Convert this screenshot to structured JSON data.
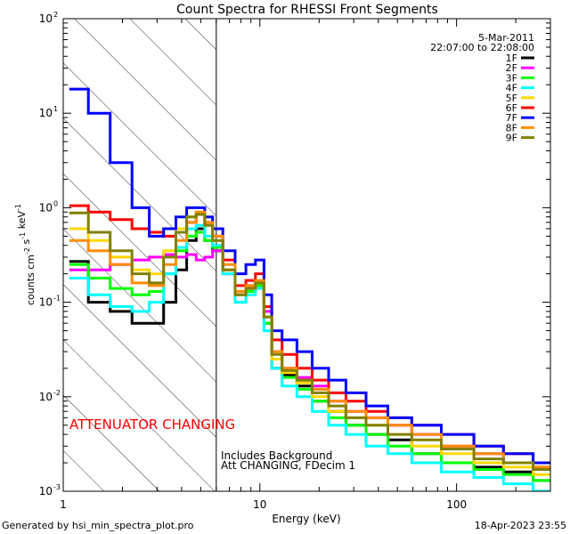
{
  "chart_data": {
    "type": "line",
    "title": "Count Spectra for RHESSI Front Segments",
    "xlabel": "Energy (keV)",
    "ylabel": "counts cm^-2 s^-1 keV^-1",
    "x_scale": "log",
    "y_scale": "log",
    "xlim": [
      1.0,
      300.0
    ],
    "ylim": [
      0.001,
      100.0
    ],
    "x_ticks": [
      {
        "value": 1,
        "label": "1"
      },
      {
        "value": 10,
        "label": "10"
      },
      {
        "value": 100,
        "label": "100"
      }
    ],
    "y_ticks": [
      {
        "value": 0.001,
        "base": "10",
        "exp": "-3"
      },
      {
        "value": 0.01,
        "base": "10",
        "exp": "-2"
      },
      {
        "value": 0.1,
        "base": "10",
        "exp": "-1"
      },
      {
        "value": 1,
        "base": "10",
        "exp": "0"
      },
      {
        "value": 10,
        "base": "10",
        "exp": "1"
      },
      {
        "value": 100,
        "base": "10",
        "exp": "2"
      }
    ],
    "legend": {
      "date": "5-Mar-2011",
      "time_range": "22:07:00 to 22:08:00",
      "placement": "top-right"
    },
    "shaded_region": {
      "x_start": 1.0,
      "x_end": 6.0,
      "pattern": "diagonal-hatch"
    },
    "annotations": {
      "attenuator": "ATTENUATOR CHANGING",
      "background": "Includes Background",
      "att_status": "Att CHANGING, FDecim 1"
    },
    "series": [
      {
        "name": "1F",
        "color": "#000000",
        "x": [
          1.2,
          1.5,
          2.0,
          2.5,
          3.0,
          3.5,
          4.0,
          4.5,
          5.0,
          5.5,
          6.0,
          7.0,
          8.0,
          9.0,
          10.0,
          11.0,
          12.0,
          14.0,
          17.0,
          20.0,
          25.0,
          30.0,
          40.0,
          50.0,
          70.0,
          100.0,
          150.0,
          200.0,
          300.0
        ],
        "values": [
          0.27,
          0.1,
          0.08,
          0.06,
          0.06,
          0.1,
          0.22,
          0.45,
          0.6,
          0.45,
          0.35,
          0.22,
          0.12,
          0.14,
          0.15,
          0.06,
          0.02,
          0.017,
          0.013,
          0.009,
          0.007,
          0.005,
          0.004,
          0.0035,
          0.0025,
          0.002,
          0.0018,
          0.0016,
          0.0013
        ]
      },
      {
        "name": "2F",
        "color": "#ff00ff",
        "x": [
          1.2,
          1.5,
          2.0,
          2.5,
          3.0,
          3.5,
          4.0,
          4.5,
          5.0,
          5.5,
          6.0,
          7.0,
          8.0,
          9.0,
          10.0,
          11.0,
          12.0,
          14.0,
          17.0,
          20.0,
          25.0,
          30.0,
          40.0,
          50.0,
          70.0,
          100.0,
          150.0,
          200.0,
          300.0
        ],
        "values": [
          0.22,
          0.22,
          0.25,
          0.28,
          0.3,
          0.32,
          0.3,
          0.32,
          0.28,
          0.3,
          0.35,
          0.2,
          0.13,
          0.15,
          0.16,
          0.08,
          0.03,
          0.02,
          0.016,
          0.013,
          0.009,
          0.007,
          0.006,
          0.005,
          0.004,
          0.003,
          0.0025,
          0.002,
          0.0018
        ]
      },
      {
        "name": "3F",
        "color": "#00ff00",
        "x": [
          1.2,
          1.5,
          2.0,
          2.5,
          3.0,
          3.5,
          4.0,
          4.5,
          5.0,
          5.5,
          6.0,
          7.0,
          8.0,
          9.0,
          10.0,
          11.0,
          12.0,
          14.0,
          17.0,
          20.0,
          25.0,
          30.0,
          40.0,
          50.0,
          70.0,
          100.0,
          150.0,
          200.0,
          300.0
        ],
        "values": [
          0.25,
          0.18,
          0.14,
          0.12,
          0.13,
          0.2,
          0.35,
          0.5,
          0.55,
          0.45,
          0.38,
          0.2,
          0.1,
          0.13,
          0.15,
          0.06,
          0.025,
          0.016,
          0.012,
          0.009,
          0.006,
          0.005,
          0.004,
          0.003,
          0.0025,
          0.002,
          0.0017,
          0.0015,
          0.0013
        ]
      },
      {
        "name": "4F",
        "color": "#00ffff",
        "x": [
          1.2,
          1.5,
          2.0,
          2.5,
          3.0,
          3.5,
          4.0,
          4.5,
          5.0,
          5.5,
          6.0,
          7.0,
          8.0,
          9.0,
          10.0,
          11.0,
          12.0,
          14.0,
          17.0,
          20.0,
          25.0,
          30.0,
          40.0,
          50.0,
          70.0,
          100.0,
          150.0,
          200.0,
          300.0
        ],
        "values": [
          0.18,
          0.12,
          0.09,
          0.08,
          0.1,
          0.2,
          0.38,
          0.6,
          0.65,
          0.5,
          0.4,
          0.2,
          0.1,
          0.12,
          0.14,
          0.05,
          0.02,
          0.013,
          0.01,
          0.007,
          0.005,
          0.004,
          0.003,
          0.0025,
          0.002,
          0.0016,
          0.0014,
          0.0012,
          0.001
        ]
      },
      {
        "name": "5F",
        "color": "#ffd700",
        "x": [
          1.2,
          1.5,
          2.0,
          2.5,
          3.0,
          3.5,
          4.0,
          4.5,
          5.0,
          5.5,
          6.0,
          7.0,
          8.0,
          9.0,
          10.0,
          11.0,
          12.0,
          14.0,
          17.0,
          20.0,
          25.0,
          30.0,
          40.0,
          50.0,
          70.0,
          100.0,
          150.0,
          200.0,
          300.0
        ],
        "values": [
          0.6,
          0.45,
          0.3,
          0.22,
          0.2,
          0.35,
          0.6,
          0.8,
          0.85,
          0.65,
          0.45,
          0.22,
          0.12,
          0.14,
          0.16,
          0.07,
          0.025,
          0.018,
          0.014,
          0.01,
          0.007,
          0.006,
          0.005,
          0.004,
          0.003,
          0.0025,
          0.002,
          0.0018,
          0.0015
        ]
      },
      {
        "name": "6F",
        "color": "#ff0000",
        "x": [
          1.2,
          1.5,
          2.0,
          2.5,
          3.0,
          3.5,
          4.0,
          4.5,
          5.0,
          5.5,
          6.0,
          7.0,
          8.0,
          9.0,
          10.0,
          11.0,
          12.0,
          14.0,
          17.0,
          20.0,
          25.0,
          30.0,
          40.0,
          50.0,
          70.0,
          100.0,
          150.0,
          200.0,
          300.0
        ],
        "values": [
          1.05,
          0.9,
          0.75,
          0.6,
          0.55,
          0.5,
          0.55,
          0.7,
          0.85,
          0.7,
          0.5,
          0.28,
          0.15,
          0.17,
          0.2,
          0.09,
          0.04,
          0.028,
          0.02,
          0.015,
          0.011,
          0.009,
          0.007,
          0.006,
          0.005,
          0.004,
          0.003,
          0.0025,
          0.002
        ]
      },
      {
        "name": "7F",
        "color": "#0000ff",
        "x": [
          1.2,
          1.5,
          2.0,
          2.5,
          3.0,
          3.5,
          4.0,
          4.5,
          5.0,
          5.5,
          6.0,
          7.0,
          8.0,
          9.0,
          10.0,
          11.0,
          12.0,
          14.0,
          17.0,
          20.0,
          25.0,
          30.0,
          40.0,
          50.0,
          70.0,
          100.0,
          150.0,
          200.0,
          300.0
        ],
        "values": [
          18.0,
          10.0,
          3.0,
          1.0,
          0.5,
          0.6,
          0.8,
          1.0,
          1.0,
          0.8,
          0.6,
          0.35,
          0.2,
          0.25,
          0.28,
          0.12,
          0.05,
          0.04,
          0.03,
          0.02,
          0.015,
          0.011,
          0.008,
          0.006,
          0.005,
          0.004,
          0.003,
          0.0025,
          0.002
        ]
      },
      {
        "name": "8F",
        "color": "#ff8c00",
        "x": [
          1.2,
          1.5,
          2.0,
          2.5,
          3.0,
          3.5,
          4.0,
          4.5,
          5.0,
          5.5,
          6.0,
          7.0,
          8.0,
          9.0,
          10.0,
          11.0,
          12.0,
          14.0,
          17.0,
          20.0,
          25.0,
          30.0,
          40.0,
          50.0,
          70.0,
          100.0,
          150.0,
          200.0,
          300.0
        ],
        "values": [
          0.45,
          0.35,
          0.25,
          0.16,
          0.15,
          0.25,
          0.45,
          0.7,
          0.9,
          0.7,
          0.5,
          0.25,
          0.13,
          0.15,
          0.17,
          0.07,
          0.03,
          0.02,
          0.015,
          0.012,
          0.009,
          0.007,
          0.006,
          0.005,
          0.004,
          0.003,
          0.0025,
          0.002,
          0.0018
        ]
      },
      {
        "name": "9F",
        "color": "#808000",
        "x": [
          1.2,
          1.5,
          2.0,
          2.5,
          3.0,
          3.5,
          4.0,
          4.5,
          5.0,
          5.5,
          6.0,
          7.0,
          8.0,
          9.0,
          10.0,
          11.0,
          12.0,
          14.0,
          17.0,
          20.0,
          25.0,
          30.0,
          40.0,
          50.0,
          70.0,
          100.0,
          150.0,
          200.0,
          300.0
        ],
        "values": [
          0.88,
          0.55,
          0.35,
          0.2,
          0.16,
          0.3,
          0.55,
          0.8,
          0.85,
          0.65,
          0.45,
          0.22,
          0.12,
          0.14,
          0.16,
          0.07,
          0.028,
          0.019,
          0.015,
          0.011,
          0.008,
          0.006,
          0.005,
          0.004,
          0.0035,
          0.0028,
          0.0022,
          0.002,
          0.0017
        ]
      }
    ]
  },
  "footer": {
    "generator": "Generated by hsi_min_spectra_plot.pro",
    "timestamp": "18-Apr-2023 23:55"
  }
}
